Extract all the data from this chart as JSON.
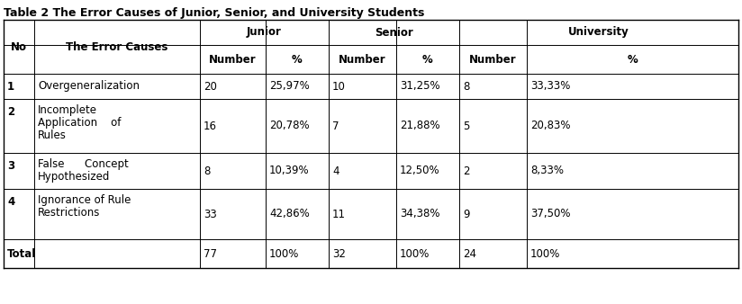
{
  "title": "Table 2 The Error Causes of Junior, Senior, and University Students",
  "col_groups": [
    {
      "label": "Junior",
      "cols": [
        "Number",
        "%"
      ]
    },
    {
      "label": "Senior",
      "cols": [
        "Number",
        "%"
      ]
    },
    {
      "label": "University",
      "cols": [
        "Number",
        "%"
      ]
    }
  ],
  "row_headers": [
    "No",
    "The Error Causes"
  ],
  "rows": [
    {
      "no": "1",
      "cause": "Overgeneralization",
      "cause_lines": [
        "Overgeneralization"
      ],
      "junior_n": "20",
      "junior_p": "25,97%",
      "senior_n": "10",
      "senior_p": "31,25%",
      "univ_n": "8",
      "univ_p": "33,33%"
    },
    {
      "no": "2",
      "cause": "Incomplete Application of Rules",
      "cause_lines": [
        "Incomplete",
        "Application    of",
        "Rules"
      ],
      "junior_n": "16",
      "junior_p": "20,78%",
      "senior_n": "7",
      "senior_p": "21,88%",
      "univ_n": "5",
      "univ_p": "20,83%"
    },
    {
      "no": "3",
      "cause": "False Concept Hypothesized",
      "cause_lines": [
        "False      Concept",
        "Hypothesized"
      ],
      "junior_n": "8",
      "junior_p": "10,39%",
      "senior_n": "4",
      "senior_p": "12,50%",
      "univ_n": "2",
      "univ_p": "8,33%"
    },
    {
      "no": "4",
      "cause": "Ignorance of Rule Restrictions",
      "cause_lines": [
        "Ignorance of Rule",
        "Restrictions"
      ],
      "junior_n": "33",
      "junior_p": "42,86%",
      "senior_n": "11",
      "senior_p": "34,38%",
      "univ_n": "9",
      "univ_p": "37,50%"
    }
  ],
  "total": {
    "label": "Total",
    "junior_n": "77",
    "junior_p": "100%",
    "senior_n": "32",
    "senior_p": "100%",
    "univ_n": "24",
    "univ_p": "100%"
  },
  "font_size": 8.5,
  "title_font_size": 9,
  "bg_color": "#ffffff",
  "border_color": "#000000",
  "text_color": "#000000",
  "font_family": "DejaVu Sans"
}
